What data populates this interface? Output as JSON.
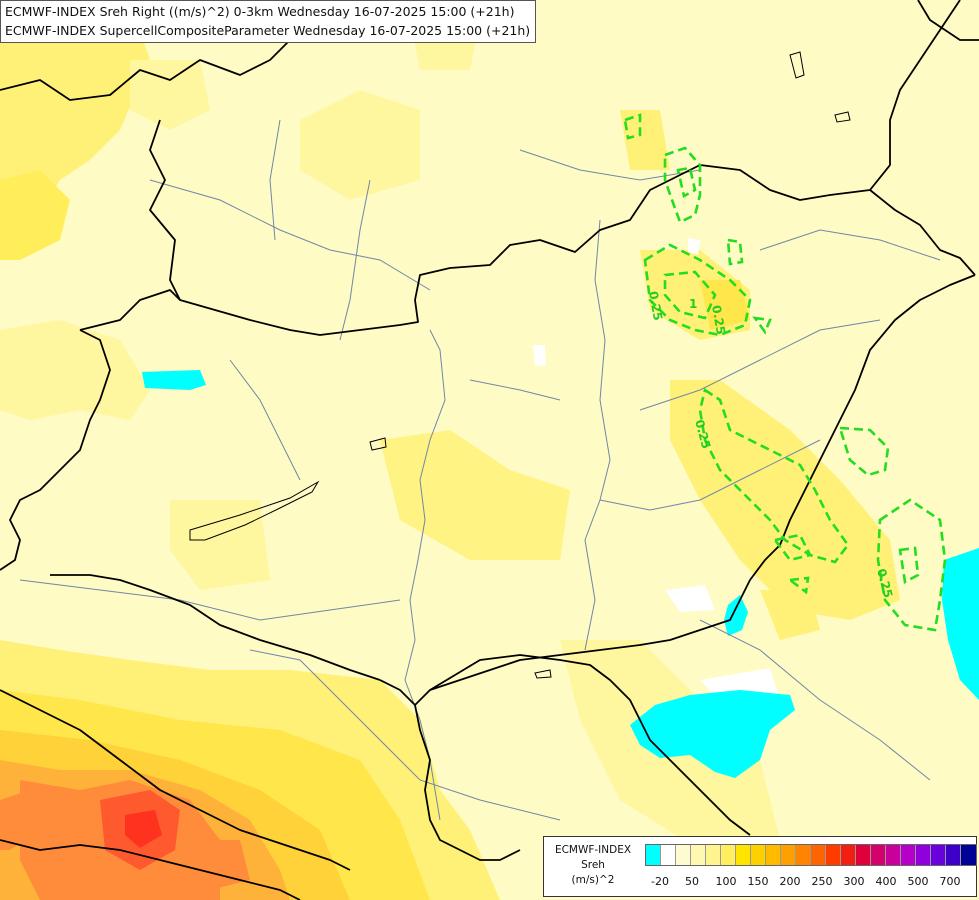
{
  "title_lines": [
    "ECMWF-INDEX Sreh Right ((m/s)^2) 0-3km Wednesday 16-07-2025 15:00 (+21h)",
    "ECMWF-INDEX SupercellCompositeParameter Wednesday 16-07-2025 15:00 (+21h)"
  ],
  "contour_labels": [
    "0.25",
    "0.25",
    "0.25",
    "1",
    "0.25"
  ],
  "legend": {
    "title_lines": [
      "ECMWF-INDEX",
      "Sreh",
      "(m/s)^2"
    ],
    "tick_labels": [
      "-20",
      "50",
      "100",
      "150",
      "200",
      "250",
      "300",
      "400",
      "500",
      "700"
    ],
    "swatch_colors": [
      "#00ffff",
      "#ffffff",
      "#fffbd0",
      "#fff8b0",
      "#fff490",
      "#ffee60",
      "#ffe400",
      "#ffd000",
      "#ffbb00",
      "#ffa000",
      "#ff8400",
      "#ff6400",
      "#ff3c00",
      "#f21e10",
      "#e0003c",
      "#d4006c",
      "#c8009c",
      "#b400c8",
      "#9000dc",
      "#6a00dc",
      "#3c00c8",
      "#000096"
    ]
  },
  "colors": {
    "background": "#fffbc4",
    "field_light": "#fff6a0",
    "field_mid": "#fff178",
    "field_strong": "#ffe64a",
    "field_orange": "#ffc43a",
    "field_deep_orange": "#ff8c3a",
    "field_red": "#ff3f2e",
    "negative": "#00ffff",
    "borders": "#000000",
    "rivers": "#6f87a8",
    "scp_contour": "#22dd22"
  }
}
